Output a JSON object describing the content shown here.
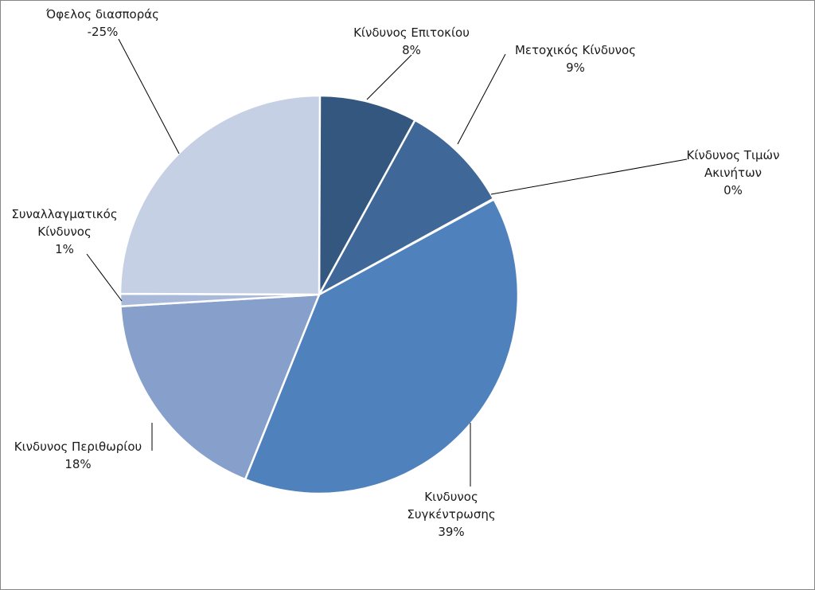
{
  "chart_data": {
    "type": "pie",
    "title": "",
    "slices": [
      {
        "name": "Κίνδυνος Επιτοκίου",
        "value": 8,
        "value_label": "8%",
        "color": "#34577f",
        "label_lines": [
          "Κίνδυνος Επιτοκίου"
        ]
      },
      {
        "name": "Μετοχικός Κίνδυνος",
        "value": 9,
        "value_label": "9%",
        "color": "#3f6899",
        "label_lines": [
          "Μετοχικός Κίνδυνος"
        ]
      },
      {
        "name": "Κίνδυνος Τιμών Ακινήτων",
        "value": 0,
        "value_label": "0%",
        "color": "#4a78b3",
        "label_lines": [
          "Κίνδυνος Τιμών",
          "Ακινήτων"
        ]
      },
      {
        "name": "Κινδυνος Συγκέντρωσης",
        "value": 39,
        "value_label": "39%",
        "color": "#4f81bd",
        "label_lines": [
          "Κινδυνος",
          "Συγκέντρωσης"
        ]
      },
      {
        "name": "Κινδυνος Περιθωρίου",
        "value": 18,
        "value_label": "18%",
        "color": "#86a0cb",
        "label_lines": [
          "Κινδυνος Περιθωρίου"
        ]
      },
      {
        "name": "Συναλλαγματικός Κίνδυνος",
        "value": 1,
        "value_label": "1%",
        "color": "#a8b9d9",
        "label_lines": [
          "Συναλλαγματικός",
          "Κίνδυνος"
        ]
      },
      {
        "name": "Όφελος διασποράς",
        "value": -25,
        "value_label": "-25%",
        "color": "#c5d0e4",
        "label_lines": [
          "Όφελος διασποράς"
        ]
      }
    ],
    "legend": "none",
    "data_labels": "outside with leader lines"
  }
}
